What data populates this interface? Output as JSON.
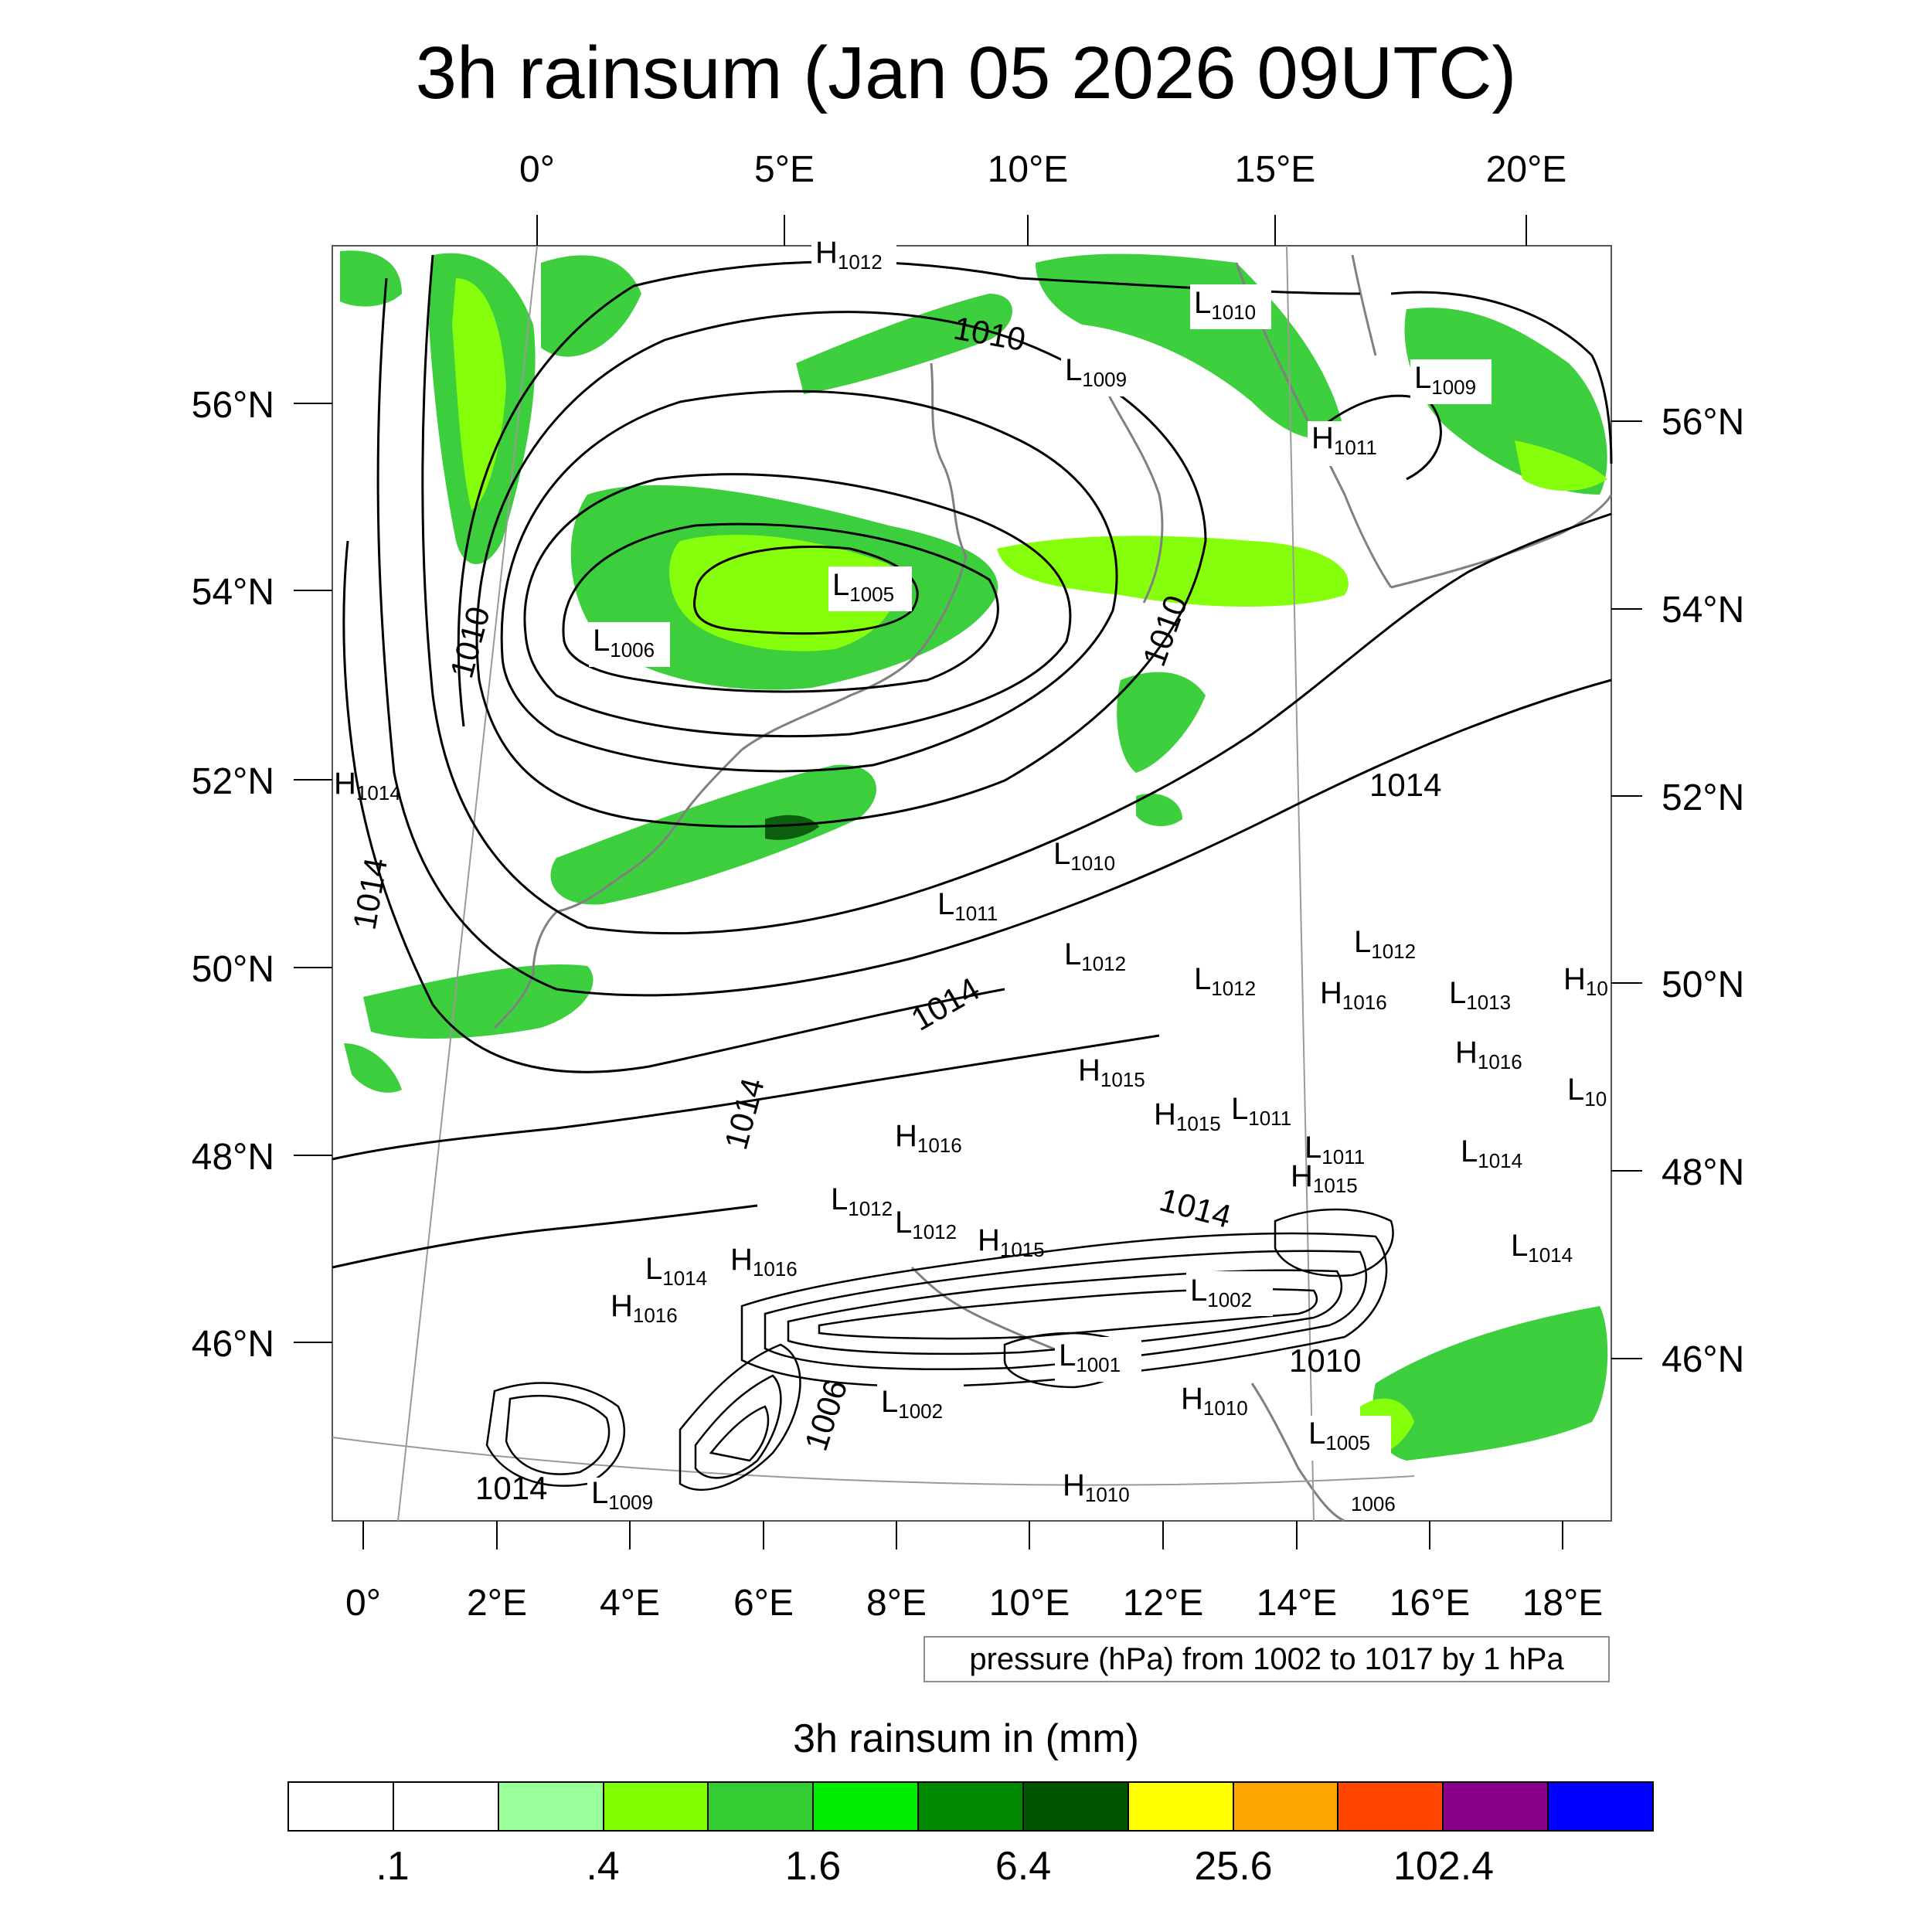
{
  "title": "3h rainsum (Jan 05 2026 09UTC)",
  "axes": {
    "top_lon_labels": [
      "0°",
      "5°E",
      "10°E",
      "15°E",
      "20°E"
    ],
    "bottom_lon_labels": [
      "0°",
      "2°E",
      "4°E",
      "6°E",
      "8°E",
      "10°E",
      "12°E",
      "14°E",
      "16°E",
      "18°E"
    ],
    "left_lat_labels": [
      "56°N",
      "54°N",
      "52°N",
      "50°N",
      "48°N",
      "46°N"
    ],
    "right_lat_labels": [
      "56°N",
      "54°N",
      "52°N",
      "50°N",
      "48°N",
      "46°N"
    ]
  },
  "pressure_note": "pressure (hPa) from 1002 to 1017 by 1 hPa",
  "colorbar": {
    "title": "3h rainsum in (mm)",
    "colors": [
      "#ffffff",
      "#ffffff",
      "#99ff99",
      "#80ff00",
      "#33cc33",
      "#00ee00",
      "#008800",
      "#005500",
      "#ffff00",
      "#ffa500",
      "#ff4500",
      "#8b008b",
      "#0000ff"
    ],
    "tick_labels": [
      ".1",
      ".4",
      "1.6",
      "6.4",
      "25.6",
      "102.4"
    ]
  },
  "pressure_centers": [
    {
      "type": "H",
      "value": "1012"
    },
    {
      "type": "L",
      "value": "1010"
    },
    {
      "type": "L",
      "value": "1009"
    },
    {
      "type": "L",
      "value": "1009"
    },
    {
      "type": "H",
      "value": "1011"
    },
    {
      "type": "L",
      "value": "1005"
    },
    {
      "type": "L",
      "value": "1006"
    },
    {
      "type": "H",
      "value": "1014"
    },
    {
      "type": "L",
      "value": "1010"
    },
    {
      "type": "L",
      "value": "1011"
    },
    {
      "type": "L",
      "value": "1012"
    },
    {
      "type": "L",
      "value": "1012"
    },
    {
      "type": "L",
      "value": "1012"
    },
    {
      "type": "H",
      "value": "1016"
    },
    {
      "type": "L",
      "value": "1013"
    },
    {
      "type": "H",
      "value": "10"
    },
    {
      "type": "H",
      "value": "1015"
    },
    {
      "type": "H",
      "value": "1016"
    },
    {
      "type": "L",
      "value": "10"
    },
    {
      "type": "H",
      "value": "1015"
    },
    {
      "type": "L",
      "value": "1011"
    },
    {
      "type": "H",
      "value": "1016"
    },
    {
      "type": "L",
      "value": "1011"
    },
    {
      "type": "L",
      "value": "1014"
    },
    {
      "type": "H",
      "value": "1015"
    },
    {
      "type": "L",
      "value": "1012"
    },
    {
      "type": "L",
      "value": "1012"
    },
    {
      "type": "H",
      "value": "1015"
    },
    {
      "type": "H",
      "value": "1016"
    },
    {
      "type": "L",
      "value": "1014"
    },
    {
      "type": "H",
      "value": "1016"
    },
    {
      "type": "L",
      "value": "1014"
    },
    {
      "type": "L",
      "value": "1002"
    },
    {
      "type": "L",
      "value": "1001"
    },
    {
      "type": "L",
      "value": "1002"
    },
    {
      "type": "H",
      "value": "1010"
    },
    {
      "type": "L",
      "value": "1005"
    },
    {
      "type": "L",
      "value": "1009"
    },
    {
      "type": "H",
      "value": "1010"
    },
    {
      "type": "L",
      "value": "1006"
    }
  ],
  "contour_labels": [
    "1010",
    "1010",
    "1010",
    "1014",
    "1014",
    "1014",
    "1014",
    "1014",
    "1006",
    "1010",
    "1014"
  ]
}
